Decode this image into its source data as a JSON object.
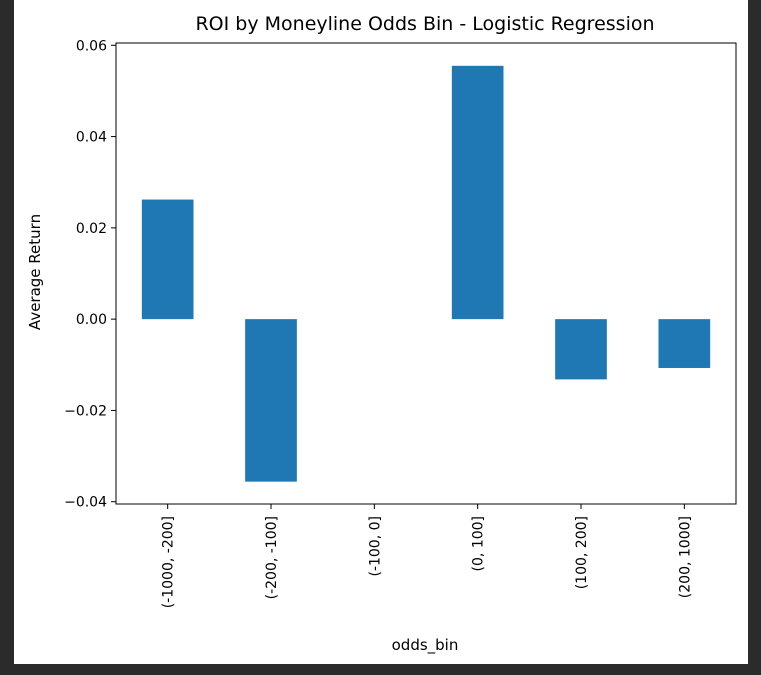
{
  "chart_data": {
    "type": "bar",
    "title": "ROI by Moneyline Odds Bin - Logistic Regression",
    "xlabel": "odds_bin",
    "ylabel": "Average Return",
    "categories": [
      "(-1000, -200]",
      "(-200, -100]",
      "(-100, 0]",
      "(0, 100]",
      "(100, 200]",
      "(200, 1000]"
    ],
    "values": [
      0.0262,
      -0.0356,
      0.0,
      0.0555,
      -0.0132,
      -0.0107
    ],
    "ylim": [
      -0.0405,
      0.0605
    ],
    "yticks": [
      0.06,
      0.04,
      0.02,
      0.0,
      -0.02,
      -0.04
    ],
    "ytick_labels": [
      "0.06",
      "0.04",
      "0.02",
      "0.00",
      "−0.02",
      "−0.04"
    ],
    "bar_color": "#1f77b4",
    "grid": false,
    "legend": "none"
  }
}
